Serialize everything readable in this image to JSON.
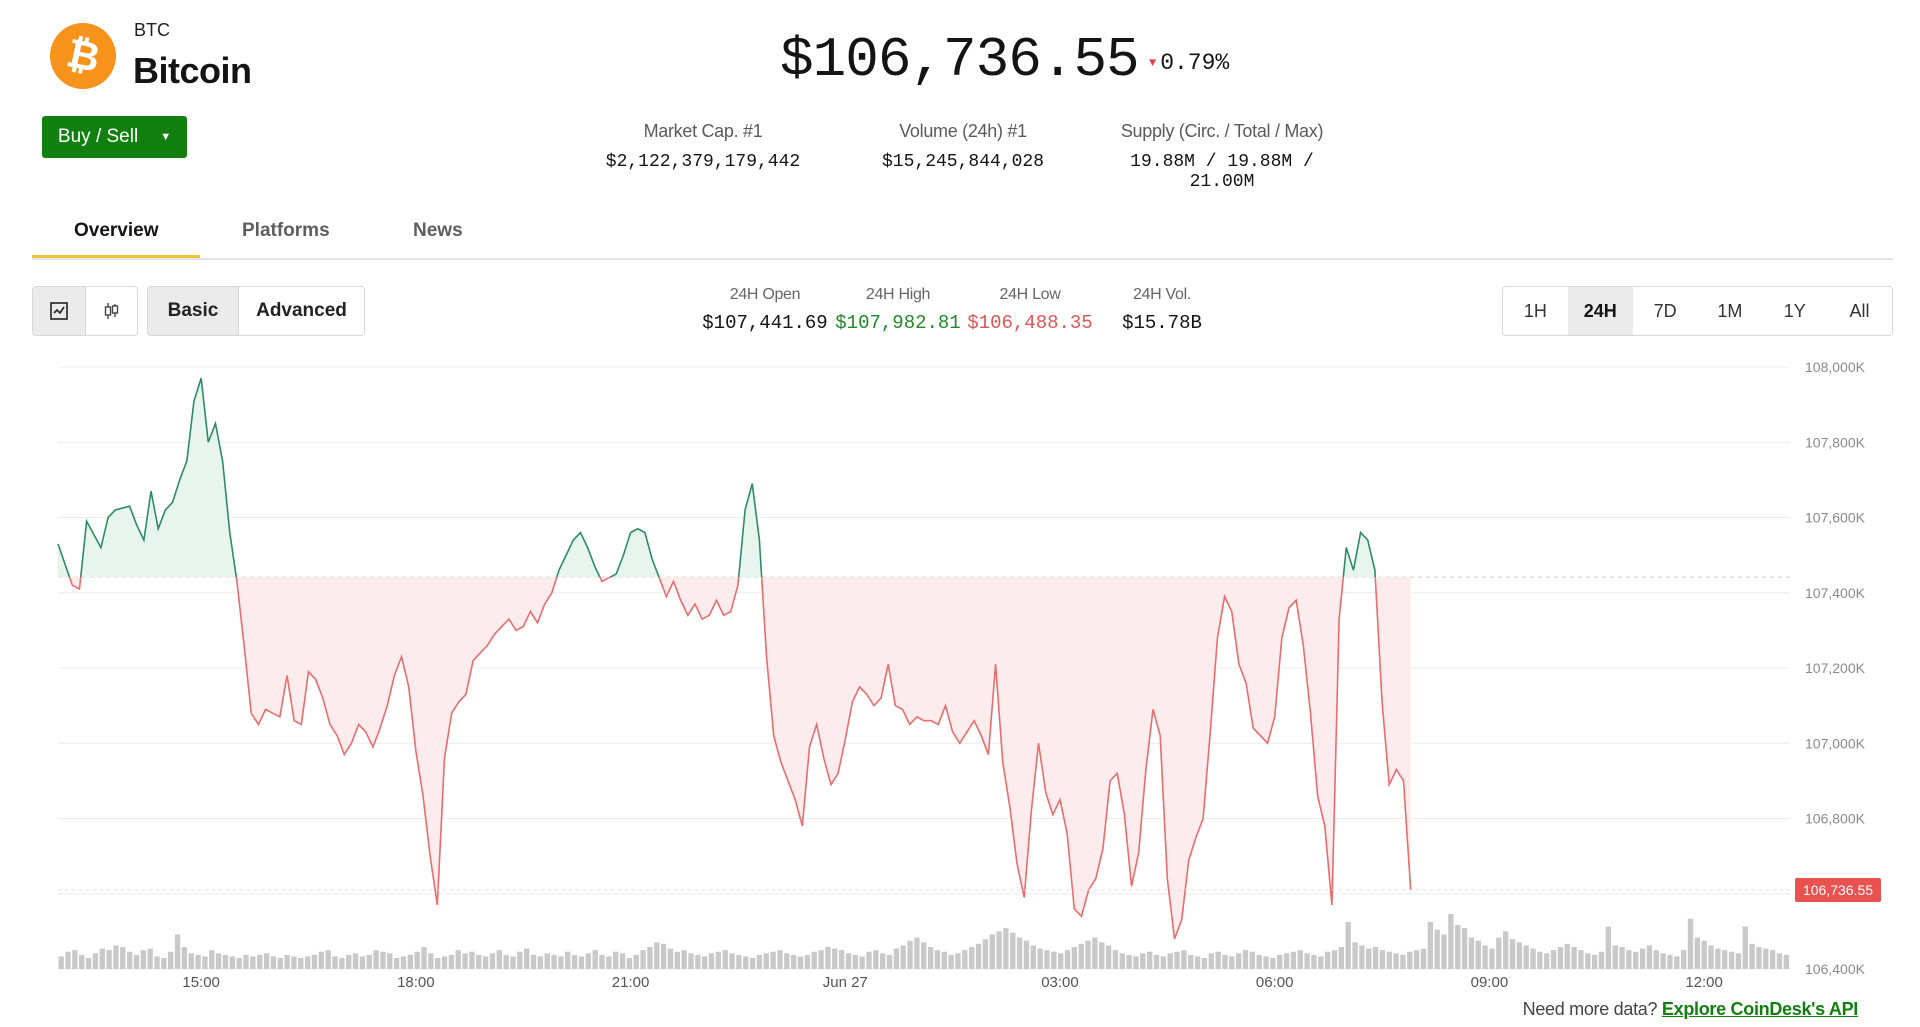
{
  "coin": {
    "symbol": "BTC",
    "name": "Bitcoin",
    "logo_glyph": "₿",
    "logo_color": "#f7931a"
  },
  "buy_sell": {
    "label": "Buy / Sell"
  },
  "price": {
    "value": "$106,736.55",
    "change": "0.79%",
    "direction": "down",
    "down_color": "#e6444c"
  },
  "stats": [
    {
      "label": "Market Cap. #1",
      "value": "$2,122,379,179,442"
    },
    {
      "label": "Volume (24h) #1",
      "value": "$15,245,844,028"
    },
    {
      "label": "Supply (Circ. / Total / Max)",
      "value": "19.88M / 19.88M / 21.00M"
    }
  ],
  "tabs": [
    "Overview",
    "Platforms",
    "News"
  ],
  "toolbar": {
    "chart_type_icons": [
      "line-chart-icon",
      "candlestick-icon"
    ],
    "modes": [
      "Basic",
      "Advanced"
    ],
    "ohlc": [
      {
        "label": "24H Open",
        "value": "$107,441.69"
      },
      {
        "label": "24H High",
        "value": "$107,982.81"
      },
      {
        "label": "24H Low",
        "value": "$106,488.35"
      },
      {
        "label": "24H Vol.",
        "value": "$15.78B"
      }
    ],
    "ranges": [
      "1H",
      "24H",
      "7D",
      "1M",
      "1Y",
      "All"
    ],
    "selected_range": "24H"
  },
  "colors": {
    "up": "#2c8c65",
    "down": "#ea6c6c",
    "accent": "#11800f",
    "tab_underline": "#f2c23a"
  },
  "chart_data": {
    "type": "area",
    "baseline": 107441.69,
    "current_label": "106,736.55",
    "ylim": [
      106400,
      108000
    ],
    "y_ticks": [
      "106,400K",
      "106,600K",
      "106,800K",
      "107,000K",
      "107,200K",
      "107,400K",
      "107,600K",
      "107,800K",
      "108,000K"
    ],
    "x_ticks": [
      {
        "label": "15:00",
        "t": 9.8
      },
      {
        "label": "18:00",
        "t": 12.8
      },
      {
        "label": "21:00",
        "t": 15.8
      },
      {
        "label": "Jun 27",
        "t": 18.8
      },
      {
        "label": "03:00",
        "t": 21.8
      },
      {
        "label": "06:00",
        "t": 24.8
      },
      {
        "label": "09:00",
        "t": 27.8
      },
      {
        "label": "12:00",
        "t": 30.8
      }
    ],
    "t_range": [
      7.8,
      32.0
    ],
    "series": [
      [
        7.8,
        107530
      ],
      [
        8.0,
        107420
      ],
      [
        8.1,
        107410
      ],
      [
        8.2,
        107590
      ],
      [
        8.4,
        107520
      ],
      [
        8.5,
        107600
      ],
      [
        8.6,
        107620
      ],
      [
        8.8,
        107630
      ],
      [
        8.9,
        107580
      ],
      [
        9.0,
        107540
      ],
      [
        9.1,
        107670
      ],
      [
        9.2,
        107570
      ],
      [
        9.3,
        107620
      ],
      [
        9.4,
        107640
      ],
      [
        9.5,
        107700
      ],
      [
        9.6,
        107750
      ],
      [
        9.7,
        107910
      ],
      [
        9.8,
        107970
      ],
      [
        9.9,
        107800
      ],
      [
        10.0,
        107850
      ],
      [
        10.1,
        107750
      ],
      [
        10.2,
        107560
      ],
      [
        10.3,
        107430
      ],
      [
        10.4,
        107260
      ],
      [
        10.5,
        107080
      ],
      [
        10.6,
        107050
      ],
      [
        10.7,
        107090
      ],
      [
        10.8,
        107080
      ],
      [
        10.9,
        107070
      ],
      [
        11.0,
        107180
      ],
      [
        11.1,
        107060
      ],
      [
        11.2,
        107050
      ],
      [
        11.3,
        107190
      ],
      [
        11.4,
        107170
      ],
      [
        11.5,
        107120
      ],
      [
        11.6,
        107050
      ],
      [
        11.7,
        107020
      ],
      [
        11.8,
        106970
      ],
      [
        11.9,
        107000
      ],
      [
        12.0,
        107050
      ],
      [
        12.1,
        107030
      ],
      [
        12.2,
        106990
      ],
      [
        12.3,
        107040
      ],
      [
        12.4,
        107100
      ],
      [
        12.5,
        107180
      ],
      [
        12.6,
        107230
      ],
      [
        12.7,
        107150
      ],
      [
        12.8,
        106980
      ],
      [
        12.9,
        106860
      ],
      [
        13.0,
        106700
      ],
      [
        13.1,
        106570
      ],
      [
        13.2,
        106960
      ],
      [
        13.3,
        107080
      ],
      [
        13.4,
        107110
      ],
      [
        13.5,
        107130
      ],
      [
        13.6,
        107220
      ],
      [
        13.7,
        107240
      ],
      [
        13.8,
        107260
      ],
      [
        13.9,
        107290
      ],
      [
        14.0,
        107310
      ],
      [
        14.1,
        107330
      ],
      [
        14.2,
        107300
      ],
      [
        14.3,
        107310
      ],
      [
        14.4,
        107350
      ],
      [
        14.5,
        107320
      ],
      [
        14.6,
        107370
      ],
      [
        14.7,
        107400
      ],
      [
        14.8,
        107460
      ],
      [
        14.9,
        107500
      ],
      [
        15.0,
        107540
      ],
      [
        15.1,
        107560
      ],
      [
        15.2,
        107520
      ],
      [
        15.3,
        107470
      ],
      [
        15.4,
        107430
      ],
      [
        15.5,
        107440
      ],
      [
        15.6,
        107450
      ],
      [
        15.7,
        107500
      ],
      [
        15.8,
        107560
      ],
      [
        15.9,
        107570
      ],
      [
        16.0,
        107560
      ],
      [
        16.1,
        107490
      ],
      [
        16.2,
        107440
      ],
      [
        16.3,
        107390
      ],
      [
        16.4,
        107430
      ],
      [
        16.5,
        107380
      ],
      [
        16.6,
        107340
      ],
      [
        16.7,
        107370
      ],
      [
        16.8,
        107330
      ],
      [
        16.9,
        107340
      ],
      [
        17.0,
        107380
      ],
      [
        17.1,
        107340
      ],
      [
        17.2,
        107350
      ],
      [
        17.3,
        107420
      ],
      [
        17.4,
        107620
      ],
      [
        17.5,
        107690
      ],
      [
        17.6,
        107540
      ],
      [
        17.7,
        107230
      ],
      [
        17.8,
        107020
      ],
      [
        17.9,
        106950
      ],
      [
        18.0,
        106900
      ],
      [
        18.1,
        106850
      ],
      [
        18.2,
        106780
      ],
      [
        18.3,
        106990
      ],
      [
        18.4,
        107050
      ],
      [
        18.5,
        106960
      ],
      [
        18.6,
        106890
      ],
      [
        18.7,
        106920
      ],
      [
        18.8,
        107010
      ],
      [
        18.9,
        107110
      ],
      [
        19.0,
        107150
      ],
      [
        19.1,
        107130
      ],
      [
        19.2,
        107100
      ],
      [
        19.3,
        107120
      ],
      [
        19.4,
        107210
      ],
      [
        19.5,
        107100
      ],
      [
        19.6,
        107090
      ],
      [
        19.7,
        107050
      ],
      [
        19.8,
        107070
      ],
      [
        19.9,
        107060
      ],
      [
        20.0,
        107060
      ],
      [
        20.1,
        107050
      ],
      [
        20.2,
        107100
      ],
      [
        20.3,
        107030
      ],
      [
        20.4,
        107000
      ],
      [
        20.5,
        107030
      ],
      [
        20.6,
        107060
      ],
      [
        20.7,
        107020
      ],
      [
        20.8,
        106970
      ],
      [
        20.9,
        107210
      ],
      [
        21.0,
        106950
      ],
      [
        21.1,
        106830
      ],
      [
        21.2,
        106680
      ],
      [
        21.3,
        106590
      ],
      [
        21.4,
        106820
      ],
      [
        21.5,
        107000
      ],
      [
        21.6,
        106870
      ],
      [
        21.7,
        106810
      ],
      [
        21.8,
        106850
      ],
      [
        21.9,
        106760
      ],
      [
        22.0,
        106560
      ],
      [
        22.1,
        106540
      ],
      [
        22.2,
        106610
      ],
      [
        22.3,
        106640
      ],
      [
        22.4,
        106720
      ],
      [
        22.5,
        106900
      ],
      [
        22.6,
        106920
      ],
      [
        22.7,
        106810
      ],
      [
        22.8,
        106620
      ],
      [
        22.9,
        106710
      ],
      [
        23.0,
        106930
      ],
      [
        23.1,
        107090
      ],
      [
        23.2,
        107020
      ],
      [
        23.3,
        106640
      ],
      [
        23.4,
        106480
      ],
      [
        23.5,
        106530
      ],
      [
        23.6,
        106690
      ],
      [
        23.7,
        106750
      ],
      [
        23.8,
        106800
      ],
      [
        23.9,
        107030
      ],
      [
        24.0,
        107280
      ],
      [
        24.1,
        107390
      ],
      [
        24.2,
        107350
      ],
      [
        24.3,
        107210
      ],
      [
        24.4,
        107160
      ],
      [
        24.5,
        107040
      ],
      [
        24.6,
        107020
      ],
      [
        24.7,
        107000
      ],
      [
        24.8,
        107070
      ],
      [
        24.9,
        107280
      ],
      [
        25.0,
        107360
      ],
      [
        25.1,
        107380
      ],
      [
        25.2,
        107260
      ],
      [
        25.3,
        107080
      ],
      [
        25.4,
        106860
      ],
      [
        25.5,
        106780
      ],
      [
        25.6,
        106570
      ],
      [
        25.7,
        107330
      ],
      [
        25.8,
        107520
      ],
      [
        25.9,
        107460
      ],
      [
        26.0,
        107560
      ],
      [
        26.1,
        107540
      ],
      [
        26.2,
        107460
      ],
      [
        26.3,
        107110
      ],
      [
        26.4,
        106890
      ],
      [
        26.5,
        106930
      ],
      [
        26.6,
        106900
      ],
      [
        26.7,
        106610
      ]
    ],
    "volume": [
      8,
      11,
      12,
      9,
      7,
      10,
      13,
      12,
      15,
      14,
      11,
      9,
      12,
      13,
      8,
      7,
      11,
      22,
      14,
      10,
      9,
      8,
      12,
      10,
      9,
      8,
      7,
      9,
      8,
      9,
      10,
      8,
      7,
      9,
      8,
      7,
      8,
      9,
      11,
      12,
      8,
      7,
      9,
      10,
      8,
      9,
      12,
      11,
      10,
      7,
      8,
      9,
      11,
      14,
      10,
      7,
      8,
      9,
      12,
      10,
      11,
      9,
      8,
      10,
      12,
      9,
      8,
      11,
      13,
      9,
      8,
      10,
      9,
      8,
      11,
      9,
      8,
      10,
      12,
      9,
      8,
      11,
      10,
      7,
      9,
      12,
      14,
      17,
      16,
      13,
      11,
      12,
      10,
      9,
      8,
      10,
      11,
      12,
      10,
      9,
      8,
      7,
      9,
      10,
      11,
      12,
      10,
      9,
      8,
      9,
      11,
      12,
      14,
      13,
      12,
      10,
      9,
      8,
      11,
      12,
      10,
      9,
      13,
      15,
      18,
      20,
      17,
      14,
      12,
      11,
      9,
      10,
      12,
      14,
      16,
      19,
      22,
      24,
      26,
      23,
      20,
      18,
      15,
      13,
      12,
      11,
      10,
      12,
      14,
      16,
      18,
      20,
      17,
      15,
      12,
      10,
      9,
      8,
      10,
      11,
      9,
      8,
      10,
      11,
      12,
      9,
      8,
      7,
      10,
      11,
      9,
      8,
      10,
      12,
      11,
      9,
      8,
      7,
      9,
      10,
      11,
      12,
      10,
      9,
      8,
      11,
      12,
      14,
      30,
      17,
      15,
      13,
      14,
      12,
      11,
      10,
      9,
      11,
      12,
      13,
      30,
      25,
      22,
      35,
      28,
      26,
      20,
      18,
      15,
      13,
      20,
      24,
      19,
      17,
      15,
      13,
      11,
      10,
      12,
      14,
      16,
      14,
      12,
      10,
      9,
      11,
      27,
      15,
      14,
      12,
      11,
      13,
      15,
      12,
      10,
      9,
      8,
      12,
      32,
      20,
      18,
      15,
      13,
      12,
      11,
      10,
      27,
      16,
      14,
      13,
      12,
      10,
      9
    ]
  },
  "footer": {
    "text": "Need more data?",
    "link": "Explore CoinDesk's API"
  }
}
